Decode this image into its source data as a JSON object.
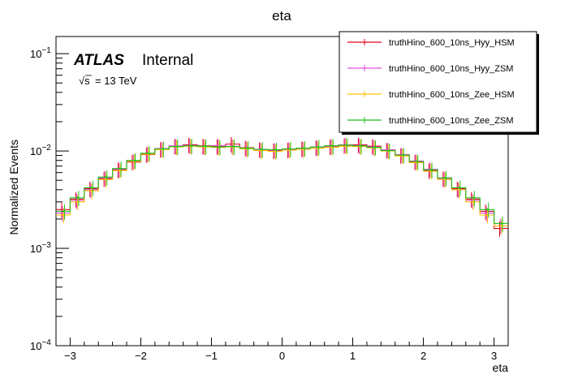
{
  "chart_data": {
    "type": "line",
    "title": "eta",
    "xlabel": "eta",
    "ylabel": "Normalized Events",
    "xlim": [
      -3.2,
      3.2
    ],
    "ylim": [
      0.0001,
      0.15
    ],
    "yscale": "log",
    "grid": false,
    "legend_position": "top-right",
    "x_ticks": [
      {
        "value": -3,
        "label": "−3"
      },
      {
        "value": -2,
        "label": "−2"
      },
      {
        "value": -1,
        "label": "−1"
      },
      {
        "value": 0,
        "label": "0"
      },
      {
        "value": 1,
        "label": "1"
      },
      {
        "value": 2,
        "label": "2"
      },
      {
        "value": 3,
        "label": "3"
      }
    ],
    "y_ticks": [
      {
        "value": 0.0001,
        "base": "10",
        "exp": "−4"
      },
      {
        "value": 0.001,
        "base": "10",
        "exp": "−3"
      },
      {
        "value": 0.01,
        "base": "10",
        "exp": "−2"
      },
      {
        "value": 0.1,
        "base": "10",
        "exp": "−1"
      }
    ],
    "x": [
      -3.1,
      -2.9,
      -2.7,
      -2.5,
      -2.3,
      -2.1,
      -1.9,
      -1.7,
      -1.5,
      -1.3,
      -1.1,
      -0.9,
      -0.7,
      -0.5,
      -0.3,
      -0.1,
      0.1,
      0.3,
      0.5,
      0.7,
      0.9,
      1.1,
      1.3,
      1.5,
      1.7,
      1.9,
      2.1,
      2.3,
      2.5,
      2.7,
      2.9,
      3.1
    ],
    "series": [
      {
        "name": "truthHino_600_10ns_Hyy_HSM",
        "color": "#e0001a",
        "values": [
          0.0025,
          0.0032,
          0.0041,
          0.0052,
          0.0064,
          0.0077,
          0.0092,
          0.0104,
          0.0112,
          0.0116,
          0.0113,
          0.0111,
          0.0118,
          0.0108,
          0.0104,
          0.0101,
          0.0103,
          0.0106,
          0.0109,
          0.0111,
          0.0114,
          0.0116,
          0.0112,
          0.0102,
          0.009,
          0.0077,
          0.0063,
          0.0052,
          0.0041,
          0.0032,
          0.0024,
          0.0016
        ]
      },
      {
        "name": "truthHino_600_10ns_Hyy_ZSM",
        "color": "#e04de0",
        "values": [
          0.0023,
          0.0031,
          0.004,
          0.0053,
          0.0065,
          0.0079,
          0.0094,
          0.0106,
          0.0113,
          0.0114,
          0.0111,
          0.0114,
          0.0112,
          0.0106,
          0.0103,
          0.0102,
          0.0104,
          0.0105,
          0.0108,
          0.0112,
          0.0116,
          0.0114,
          0.011,
          0.0103,
          0.0092,
          0.0079,
          0.0065,
          0.0052,
          0.004,
          0.0031,
          0.0023,
          0.0017
        ]
      },
      {
        "name": "truthHino_600_10ns_Zee_HSM",
        "color": "#ffc200",
        "values": [
          0.0022,
          0.003,
          0.0039,
          0.0051,
          0.0063,
          0.0078,
          0.0093,
          0.0103,
          0.011,
          0.0112,
          0.011,
          0.0109,
          0.011,
          0.0105,
          0.0101,
          0.0099,
          0.0102,
          0.0104,
          0.0107,
          0.0109,
          0.0112,
          0.0111,
          0.0108,
          0.01,
          0.0089,
          0.0076,
          0.0062,
          0.0051,
          0.004,
          0.003,
          0.0022,
          0.0017
        ]
      },
      {
        "name": "truthHino_600_10ns_Zee_ZSM",
        "color": "#1fbf1f",
        "values": [
          0.0024,
          0.0033,
          0.0042,
          0.0054,
          0.0066,
          0.008,
          0.0095,
          0.0105,
          0.0111,
          0.0113,
          0.0112,
          0.011,
          0.0111,
          0.0107,
          0.0104,
          0.0103,
          0.0105,
          0.0107,
          0.011,
          0.0113,
          0.0115,
          0.0113,
          0.0109,
          0.0101,
          0.0091,
          0.0078,
          0.0064,
          0.0053,
          0.0042,
          0.0033,
          0.0025,
          0.0018
        ]
      }
    ],
    "annotations": {
      "atlas": "ATLAS",
      "internal": "Internal",
      "energy_root": "√s",
      "energy_value": "= 13 TeV"
    }
  }
}
